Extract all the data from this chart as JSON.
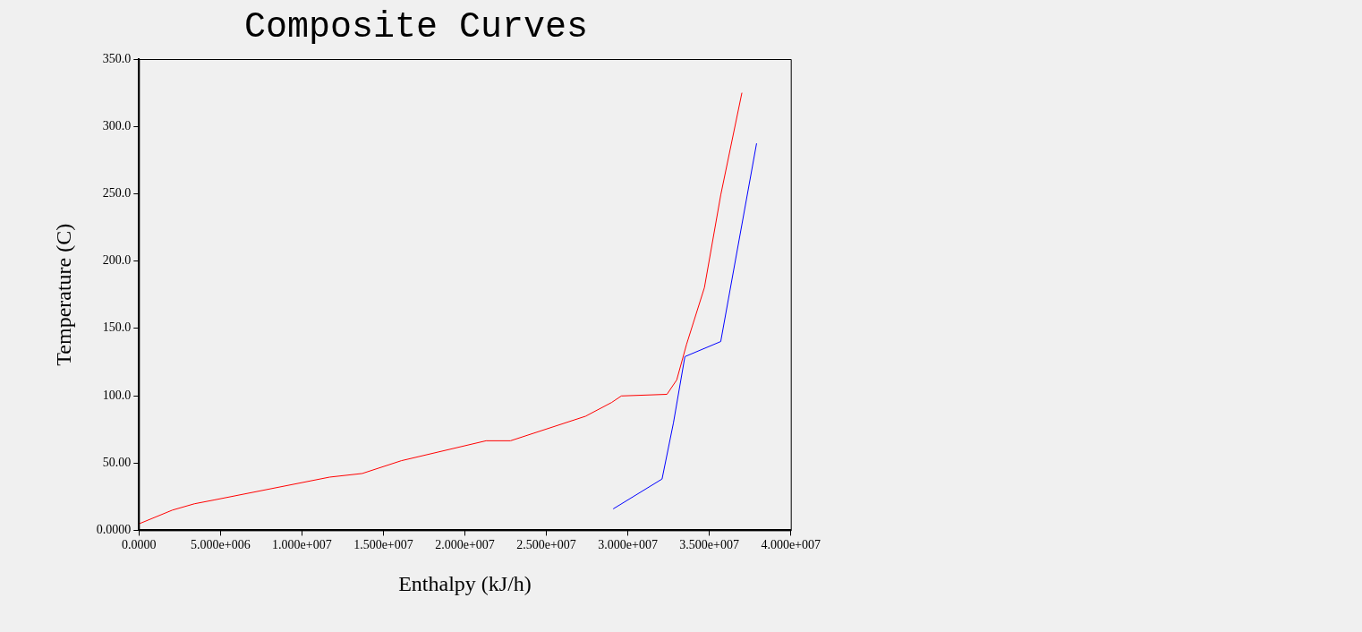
{
  "chart_data": {
    "type": "line",
    "title": "Composite Curves",
    "xlabel": "Enthalpy (kJ/h)",
    "ylabel": "Temperature (C)",
    "xlim": [
      0,
      40000000
    ],
    "ylim": [
      0,
      350
    ],
    "xticks": [
      {
        "value": 0,
        "label": "0.0000"
      },
      {
        "value": 5000000,
        "label": "5.000e+006"
      },
      {
        "value": 10000000,
        "label": "1.000e+007"
      },
      {
        "value": 15000000,
        "label": "1.500e+007"
      },
      {
        "value": 20000000,
        "label": "2.000e+007"
      },
      {
        "value": 25000000,
        "label": "2.500e+007"
      },
      {
        "value": 30000000,
        "label": "3.000e+007"
      },
      {
        "value": 35000000,
        "label": "3.500e+007"
      },
      {
        "value": 40000000,
        "label": "4.000e+007"
      }
    ],
    "yticks": [
      {
        "value": 0,
        "label": "0.0000"
      },
      {
        "value": 50,
        "label": "50.00"
      },
      {
        "value": 100,
        "label": "100.0"
      },
      {
        "value": 150,
        "label": "150.0"
      },
      {
        "value": 200,
        "label": "200.0"
      },
      {
        "value": 250,
        "label": "250.0"
      },
      {
        "value": 300,
        "label": "300.0"
      },
      {
        "value": 350,
        "label": "350.0"
      }
    ],
    "grid": false,
    "legend": false,
    "marker": "none",
    "line_style": "solid",
    "series": [
      {
        "color": "#ff0000",
        "x": [
          0,
          2050000,
          3400000,
          4600000,
          11700000,
          13700000,
          16100000,
          21300000,
          22800000,
          27400000,
          29000000,
          29600000,
          32400000,
          33000000,
          33600000,
          34700000,
          35700000,
          37000000
        ],
        "values": [
          4.8,
          15,
          19.7,
          22.5,
          39.5,
          42.2,
          51.7,
          66.5,
          66.5,
          84.7,
          94.9,
          99.8,
          101,
          111.7,
          138,
          180.3,
          249,
          325
        ]
      },
      {
        "color": "#0000ff",
        "x": [
          29100000,
          32100000,
          32800000,
          33500000,
          35700000,
          37900000
        ],
        "values": [
          15.9,
          38.1,
          79.9,
          129,
          140.2,
          287.4
        ]
      }
    ]
  }
}
